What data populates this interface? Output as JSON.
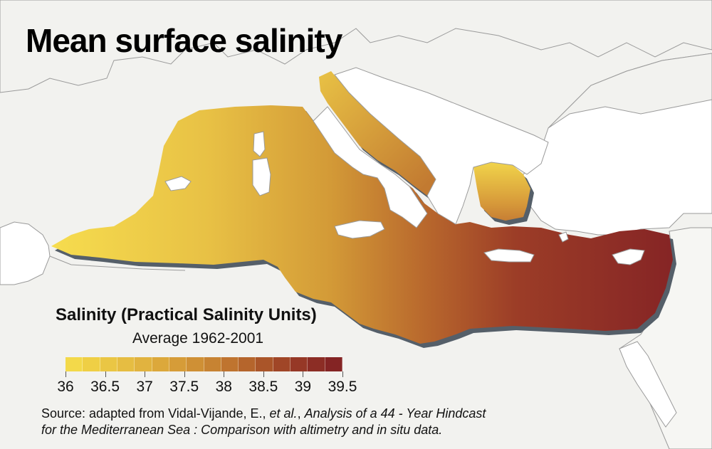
{
  "title": "Mean surface salinity",
  "legend": {
    "title": "Salinity (Practical Salinity Units)",
    "subtitle": "Average 1962-2001",
    "min": 36,
    "max": 39.5,
    "tick_labels": [
      "36",
      "36.5",
      "37",
      "37.5",
      "38",
      "38.5",
      "39",
      "39.5"
    ],
    "colors": [
      "#f3d94a",
      "#efcf45",
      "#eac644",
      "#e6bd42",
      "#e1b33f",
      "#dca83b",
      "#d69c38",
      "#cf9035",
      "#c78332",
      "#bf742f",
      "#b5652c",
      "#aa5529",
      "#a04627",
      "#963826",
      "#8c2d25",
      "#842424"
    ]
  },
  "source": {
    "prefix": "Source: adapted from Vidal-Vijande, E., ",
    "etal": "et al.",
    "sep": ", ",
    "line1_title": "Analysis of a 44 - Year Hindcast",
    "line2_title": "for the Mediterranean Sea : Comparison with altimetry and in situ data."
  },
  "colors": {
    "background": "#f2f2ef",
    "land": "#ffffff",
    "coastline": "#999999",
    "sea_shadow": "#555f69"
  }
}
